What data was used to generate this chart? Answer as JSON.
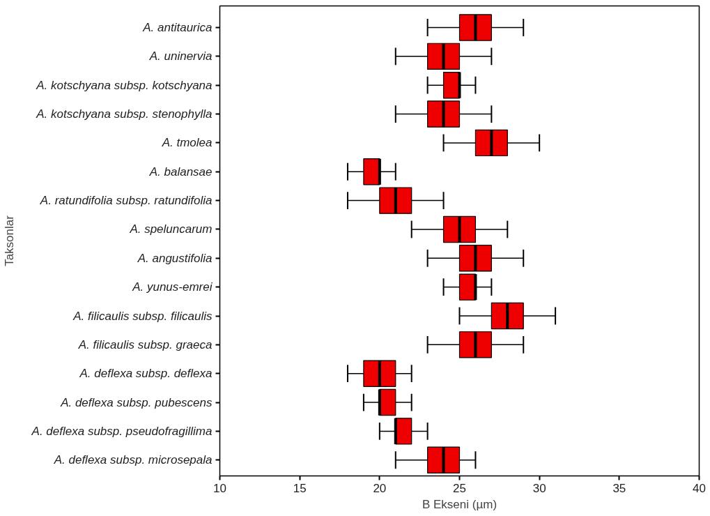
{
  "chart_data": {
    "type": "box",
    "orientation": "horizontal",
    "xlabel": "B Ekseni (µm)",
    "ylabel": "Taksonlar",
    "categories": [
      "A. antitaurica",
      "A. uninervia",
      "A. kotschyana subsp. kotschyana",
      "A. kotschyana subsp. stenophylla",
      "A. tmolea",
      "A. balansae",
      "A. ratundifolia subsp. ratundifolia",
      "A. speluncarum",
      "A. angustifolia",
      "A. yunus-emrei",
      "A. filicaulis subsp. filicaulis",
      "A. filicaulis subsp. graeca",
      "A. deflexa subsp. deflexa",
      "A. deflexa subsp. pubescens",
      "A. deflexa subsp. pseudofragillima",
      "A. deflexa subsp. microsepala"
    ],
    "color": "#ee0000",
    "boxes": [
      {
        "low": 23,
        "q1": 25,
        "median": 26,
        "q3": 27,
        "high": 29
      },
      {
        "low": 21,
        "q1": 23,
        "median": 24,
        "q3": 25,
        "high": 27
      },
      {
        "low": 23,
        "q1": 24,
        "median": 25,
        "q3": 25,
        "high": 26
      },
      {
        "low": 21,
        "q1": 23,
        "median": 24,
        "q3": 25,
        "high": 27
      },
      {
        "low": 24,
        "q1": 26,
        "median": 27,
        "q3": 28,
        "high": 30
      },
      {
        "low": 18,
        "q1": 19,
        "median": 20,
        "q3": 20,
        "high": 21
      },
      {
        "low": 18,
        "q1": 20,
        "median": 21,
        "q3": 22,
        "high": 24
      },
      {
        "low": 22,
        "q1": 24,
        "median": 25,
        "q3": 26,
        "high": 28
      },
      {
        "low": 23,
        "q1": 25,
        "median": 26,
        "q3": 27,
        "high": 29
      },
      {
        "low": 24,
        "q1": 25,
        "median": 26,
        "q3": 26,
        "high": 27
      },
      {
        "low": 25,
        "q1": 27,
        "median": 28,
        "q3": 29,
        "high": 31
      },
      {
        "low": 23,
        "q1": 25,
        "median": 26,
        "q3": 27,
        "high": 29
      },
      {
        "low": 18,
        "q1": 19,
        "median": 20,
        "q3": 21,
        "high": 22
      },
      {
        "low": 19,
        "q1": 20,
        "median": 20,
        "q3": 21,
        "high": 22
      },
      {
        "low": 20,
        "q1": 21,
        "median": 21,
        "q3": 22,
        "high": 23
      },
      {
        "low": 21,
        "q1": 23,
        "median": 24,
        "q3": 25,
        "high": 26
      }
    ],
    "xlim": [
      10,
      40
    ],
    "xticks": [
      10,
      15,
      20,
      25,
      30,
      35,
      40
    ],
    "grid": false
  }
}
